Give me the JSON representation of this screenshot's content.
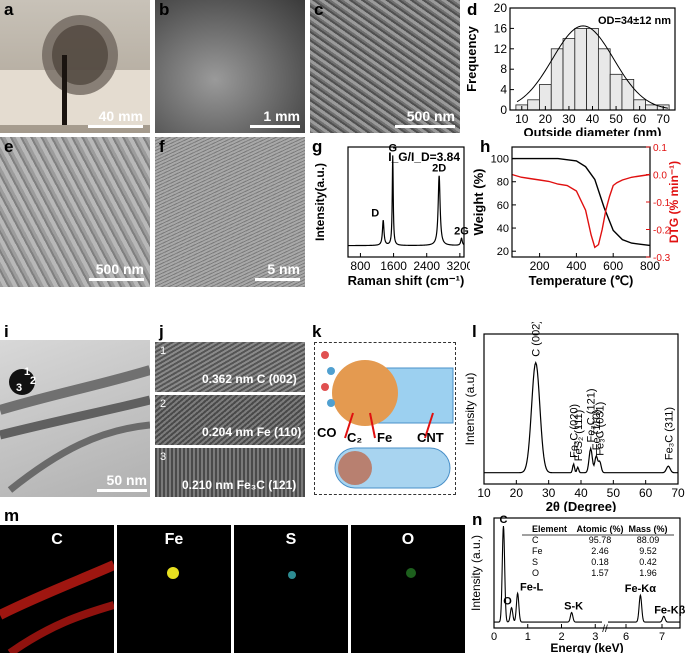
{
  "panels": {
    "a": {
      "label": "a",
      "scale": "40 mm"
    },
    "b": {
      "label": "b",
      "scale": "1 mm"
    },
    "c": {
      "label": "c",
      "scale": "500 nm"
    },
    "d": {
      "label": "d"
    },
    "e": {
      "label": "e",
      "scale": "500 nm"
    },
    "f": {
      "label": "f",
      "scale": "5 nm"
    },
    "g": {
      "label": "g"
    },
    "h": {
      "label": "h"
    },
    "i": {
      "label": "i",
      "scale": "50 nm",
      "markers": [
        "1",
        "2",
        "3"
      ]
    },
    "j": {
      "label": "j",
      "items": [
        {
          "n": "1",
          "text": "0.362 nm C (002)"
        },
        {
          "n": "2",
          "text": "0.204 nm Fe (110)"
        },
        {
          "n": "3",
          "text": "0.210 nm Fe₃C (121)"
        }
      ]
    },
    "k": {
      "label": "k",
      "co": "CO",
      "c2": "C₂",
      "fe": "Fe",
      "cnt": "CNT"
    },
    "l": {
      "label": "l"
    },
    "m": {
      "label": "m",
      "maps": [
        "C",
        "Fe",
        "S",
        "O"
      ],
      "colors": [
        "#e0201c",
        "#e8e020",
        "#40c8d0",
        "#30a030"
      ]
    },
    "n": {
      "label": "n"
    }
  },
  "chart_data": [
    {
      "panel": "d",
      "type": "bar",
      "annotation": "OD=34±12 nm",
      "xlabel": "Outside diameter (nm)",
      "ylabel": "Frequency",
      "xlim": [
        5,
        75
      ],
      "ylim": [
        0,
        20
      ],
      "xticks": [
        10,
        20,
        30,
        40,
        50,
        60,
        70
      ],
      "yticks": [
        0,
        4,
        8,
        12,
        16,
        20
      ],
      "bin_centers": [
        10,
        15,
        20,
        25,
        30,
        35,
        40,
        45,
        50,
        55,
        60,
        65,
        70
      ],
      "values": [
        1,
        2,
        5,
        12,
        14,
        16,
        16,
        12,
        7,
        6,
        2,
        1,
        1
      ]
    },
    {
      "panel": "g",
      "type": "line",
      "annotation": "I_G/I_D=3.84",
      "xlabel": "Raman shift (cm⁻¹)",
      "ylabel": "Intensity(a.u.)",
      "xlim": [
        500,
        3300
      ],
      "xticks": [
        800,
        1600,
        2400,
        3200
      ],
      "peaks": [
        {
          "label": "D",
          "x": 1350,
          "y": 0.28
        },
        {
          "label": "G",
          "x": 1580,
          "y": 1.0
        },
        {
          "label": "2D",
          "x": 2700,
          "y": 0.78
        },
        {
          "label": "2G",
          "x": 3240,
          "y": 0.08
        }
      ]
    },
    {
      "panel": "h",
      "type": "line",
      "xlabel": "Temperature (℃)",
      "ylabel": "Weight (%)",
      "y2label": "DTG (% min⁻¹)",
      "xlim": [
        50,
        800
      ],
      "ylim": [
        15,
        110
      ],
      "y2lim": [
        -0.3,
        0.1
      ],
      "xticks": [
        200,
        400,
        600,
        800
      ],
      "yticks": [
        20,
        40,
        60,
        80,
        100
      ],
      "y2ticks": [
        0.1,
        0.0,
        -0.1,
        -0.2,
        -0.3
      ],
      "series": [
        {
          "axis": "left",
          "color": "#000000",
          "x": [
            50,
            200,
            300,
            400,
            450,
            500,
            550,
            600,
            650,
            700,
            750,
            800
          ],
          "y": [
            100,
            100,
            100,
            98,
            93,
            82,
            58,
            38,
            30,
            27,
            26,
            25
          ]
        },
        {
          "axis": "right",
          "color": "#e01010",
          "x": [
            50,
            100,
            150,
            200,
            250,
            300,
            350,
            400,
            450,
            480,
            500,
            520,
            540,
            560,
            580,
            600,
            620,
            650,
            700,
            750,
            800
          ],
          "y": [
            0.0,
            -0.01,
            -0.015,
            -0.02,
            -0.025,
            -0.035,
            -0.04,
            -0.06,
            -0.13,
            -0.22,
            -0.265,
            -0.255,
            -0.2,
            -0.13,
            -0.08,
            -0.04,
            -0.03,
            -0.02,
            -0.01,
            -0.005,
            0.0
          ]
        }
      ]
    },
    {
      "panel": "l",
      "type": "line",
      "xlabel": "2θ (Degree)",
      "ylabel": "Intensity (a.u)",
      "xlim": [
        10,
        70
      ],
      "xticks": [
        10,
        20,
        30,
        40,
        50,
        60,
        70
      ],
      "peaks": [
        {
          "label": "C (002)",
          "x": 26,
          "y": 1.0
        },
        {
          "label": "Fe₃C (020)",
          "x": 37.7,
          "y": 0.08
        },
        {
          "label": "FeS₂ (111)",
          "x": 39,
          "y": 0.05
        },
        {
          "label": "Fe₃C (121)",
          "x": 43,
          "y": 0.22
        },
        {
          "label": "Fe (110)",
          "x": 44.7,
          "y": 0.15
        },
        {
          "label": "Fe₃C (031)",
          "x": 45.8,
          "y": 0.1
        },
        {
          "label": "Fe₃C (311)",
          "x": 67,
          "y": 0.06
        }
      ]
    },
    {
      "panel": "n",
      "type": "line",
      "xlabel": "Energy (keV)",
      "ylabel": "Intensity (a.u.)",
      "xticks": [
        0,
        1,
        2,
        3,
        6,
        7
      ],
      "peaks": [
        {
          "label": "C",
          "x": 0.28,
          "y": 1.0
        },
        {
          "label": "O",
          "x": 0.52,
          "y": 0.15
        },
        {
          "label": "Fe-L",
          "x": 0.7,
          "y": 0.3
        },
        {
          "label": "S-K",
          "x": 2.3,
          "y": 0.1
        },
        {
          "label": "Fe-Kα",
          "x": 6.4,
          "y": 0.28
        },
        {
          "label": "Fe-Kβ",
          "x": 7.05,
          "y": 0.06
        }
      ],
      "table": {
        "headers": [
          "Element",
          "Atomic (%)",
          "Mass (%)"
        ],
        "rows": [
          [
            "C",
            "95.78",
            "88.09"
          ],
          [
            "Fe",
            "2.46",
            "9.52"
          ],
          [
            "S",
            "0.18",
            "0.42"
          ],
          [
            "O",
            "1.57",
            "1.96"
          ]
        ]
      }
    }
  ]
}
